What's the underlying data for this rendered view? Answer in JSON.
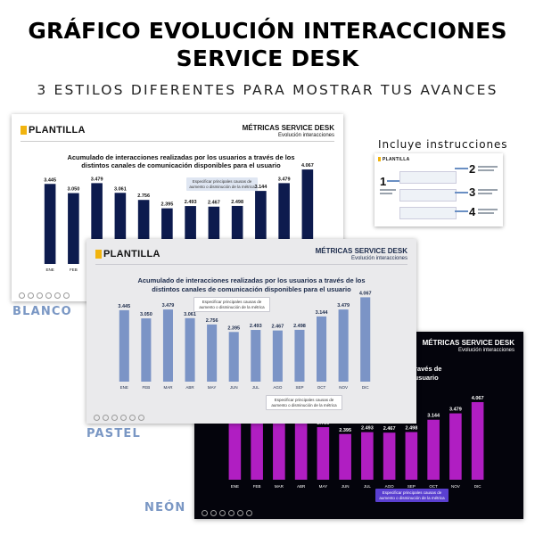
{
  "header": {
    "title_line1": "GRÁFICO EVOLUCIÓN INTERACCIONES",
    "title_line2": "SERVICE DESK",
    "subtitle": "3 ESTILOS DIFERENTES PARA MOSTRAR TUS AVANCES"
  },
  "instructions": {
    "label": "Incluye instrucciones",
    "steps": [
      "1",
      "2",
      "3",
      "4"
    ]
  },
  "slide_text": {
    "logo": "PLANTILLA",
    "metrics_title": "MÉTRICAS SERVICE DESK",
    "metrics_subtitle": "Evolución interacciones",
    "chart_title_line1": "Acumulado de interacciones realizadas por los usuarios a través de los",
    "chart_title_line2": "distintos canales de comunicación disponibles para el usuario",
    "neon_title_line1": "s a través de",
    "neon_title_line2": "a el usuario",
    "note_line1": "Especificar principales causas de",
    "note_line2": "aumento o disminución de la métrica"
  },
  "styles": {
    "blanco": {
      "label": "BLANCO",
      "label_color": "#7a97c4",
      "bar_color": "#0d1b4e",
      "text_color": "#111111",
      "background": "#ffffff"
    },
    "pastel": {
      "label": "PASTEL",
      "label_color": "#7a97c4",
      "bar_color": "#7b94c6",
      "text_color": "#1b2a4a",
      "background": "#eaeaec"
    },
    "neon": {
      "label": "NEÓN",
      "label_color": "#7a97c4",
      "bar_color": "#b01ec2",
      "text_color": "#ffffff",
      "background": "#04040c"
    }
  },
  "chart_data": {
    "type": "bar",
    "title": "Acumulado de interacciones realizadas por los usuarios a través de los distintos canales de comunicación disponibles para el usuario",
    "categories": [
      "ENE",
      "FEB",
      "MAR",
      "ABR",
      "MAY",
      "JUN",
      "JUL",
      "AGO",
      "SEP",
      "OCT",
      "NOV",
      "DIC"
    ],
    "values": [
      3445,
      3050,
      3479,
      3061,
      2756,
      2395,
      2493,
      2467,
      2498,
      3144,
      3479,
      4067
    ],
    "value_labels": [
      "3.445",
      "3.050",
      "3.479",
      "3.061",
      "2.756",
      "2.395",
      "2.493",
      "2.467",
      "2.498",
      "3.144",
      "3.479",
      "4.067"
    ],
    "xlabel": "",
    "ylabel": "",
    "ylim": [
      0,
      4300
    ]
  }
}
